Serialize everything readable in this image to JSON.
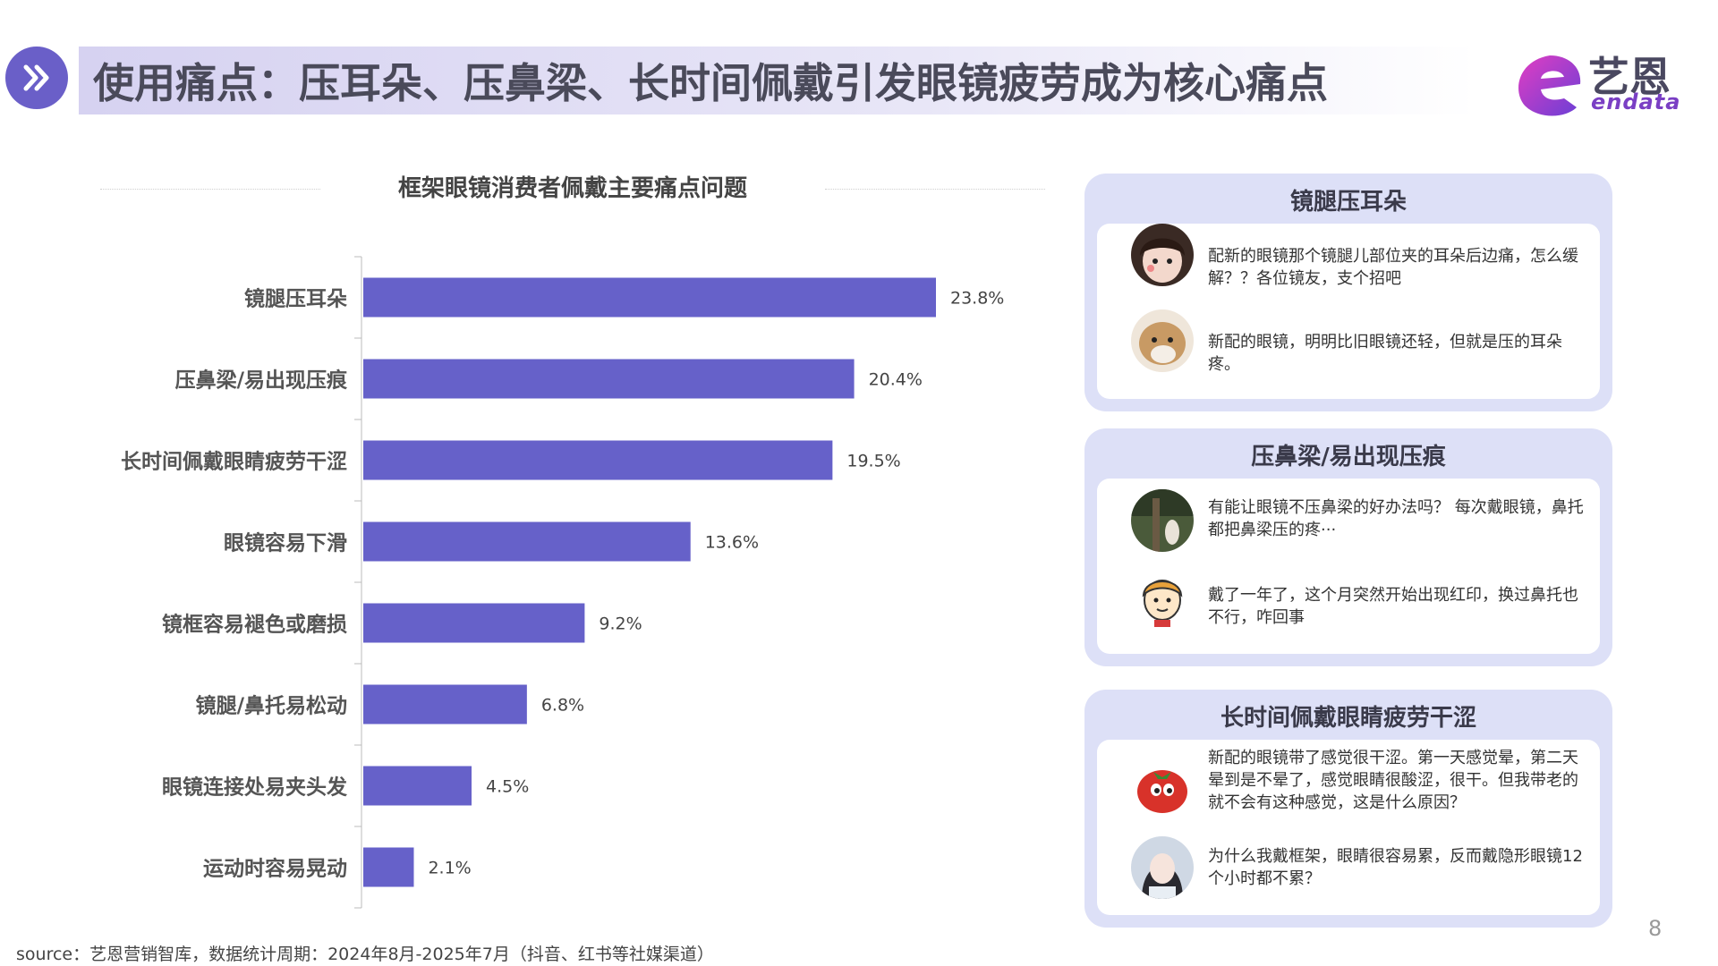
{
  "header": {
    "title": "使用痛点：压耳朵、压鼻梁、长时间佩戴引发眼镜疲劳成为核心痛点",
    "nav_icon": "double-chevron-right-icon",
    "logo": {
      "cn": "艺恩",
      "en": "endata",
      "accent": "#7a3fc4"
    }
  },
  "chart_data": {
    "type": "bar",
    "orientation": "horizontal",
    "title": "框架眼镜消费者佩戴主要痛点问题",
    "categories": [
      "镜腿压耳朵",
      "压鼻梁/易出现压痕",
      "长时间佩戴眼睛疲劳干涩",
      "眼镜容易下滑",
      "镜框容易褪色或磨损",
      "镜腿/鼻托易松动",
      "眼镜连接处易夹头发",
      "运动时容易晃动"
    ],
    "values": [
      23.8,
      20.4,
      19.5,
      13.6,
      9.2,
      6.8,
      4.5,
      2.1
    ],
    "value_labels": [
      "23.8%",
      "20.4%",
      "19.5%",
      "13.6%",
      "9.2%",
      "6.8%",
      "4.5%",
      "2.1%"
    ],
    "xlim": [
      0,
      30
    ],
    "color": "#6661c9",
    "grid": false
  },
  "cards": [
    {
      "title": "镜腿压耳朵",
      "comments": [
        {
          "avatar": "avatar-girl-icon",
          "text": "配新的眼镜那个镜腿儿部位夹的耳朵后边痛，怎么缓解？？各位镜友，支个招吧"
        },
        {
          "avatar": "avatar-dog-icon",
          "text": "新配的眼镜，明明比旧眼镜还轻，但就是压的耳朵疼。"
        }
      ]
    },
    {
      "title": "压鼻梁/易出现压痕",
      "comments": [
        {
          "avatar": "avatar-forest-icon",
          "text": "有能让眼镜不压鼻梁的好办法吗？ 每次戴眼镜，鼻托都把鼻梁压的疼···"
        },
        {
          "avatar": "avatar-cartoon-boy-icon",
          "text": "戴了一年了，这个月突然开始出现红印，换过鼻托也不行，咋回事"
        }
      ]
    },
    {
      "title": "长时间佩戴眼睛疲劳干涩",
      "comments": [
        {
          "avatar": "avatar-tomato-icon",
          "text": "新配的眼镜带了感觉很干涩。第一天感觉晕，第二天晕到是不晕了，感觉眼睛很酸涩，很干。但我带老的就不会有这种感觉，这是什么原因？"
        },
        {
          "avatar": "avatar-woman-icon",
          "text": "为什么我戴框架，眼睛很容易累，反而戴隐形眼镜12个小时都不累？"
        }
      ]
    }
  ],
  "footer": {
    "source": "source：艺恩营销智库，数据统计周期：2024年8月-2025年7月（抖音、红书等社媒渠道）",
    "page_number": "8"
  }
}
